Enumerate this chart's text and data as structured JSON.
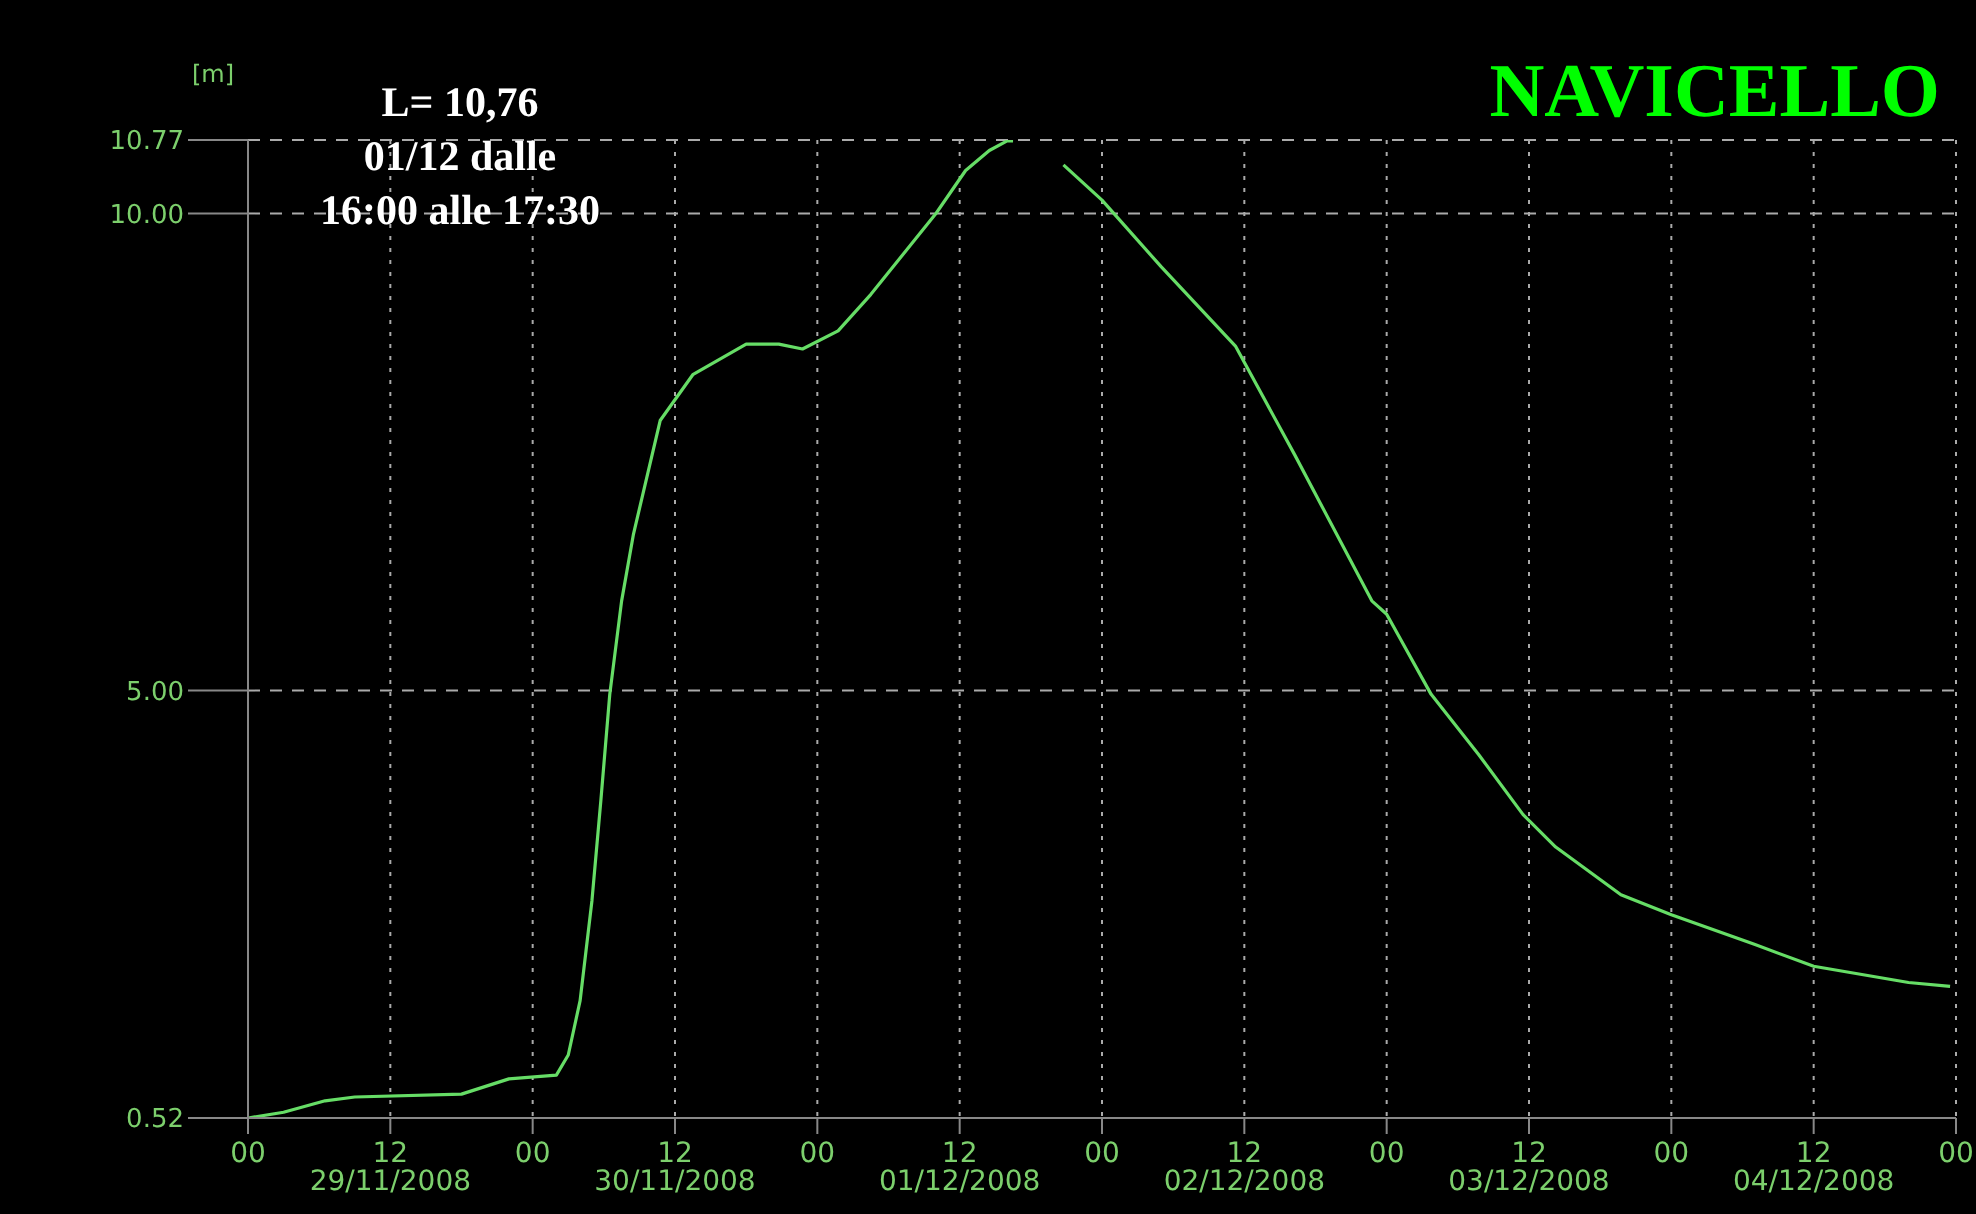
{
  "chart_data": {
    "type": "line",
    "title": "NAVICELLO",
    "ylabel": "[m]",
    "annotations": [
      "L= 10,76\n01/12 dalle\n16:00 alle 17:30"
    ],
    "x": [
      "2008-11-29T00:00",
      "2008-11-29T03:00",
      "2008-11-29T06:30",
      "2008-11-29T09:00",
      "2008-11-29T18:00",
      "2008-11-29T22:00",
      "2008-11-30T02:00",
      "2008-11-30T03:00",
      "2008-11-30T04:00",
      "2008-11-30T05:00",
      "2008-11-30T05:45",
      "2008-11-30T06:30",
      "2008-11-30T07:30",
      "2008-11-30T08:30",
      "2008-11-30T10:45",
      "2008-11-30T13:30",
      "2008-11-30T18:00",
      "2008-11-30T20:45",
      "2008-11-30T22:45",
      "2008-12-01T01:45",
      "2008-12-01T04:30",
      "2008-12-01T10:00",
      "2008-12-01T12:30",
      "2008-12-01T14:30",
      "2008-12-01T16:00",
      "2008-12-01T16:30",
      "2008-12-01T18:00",
      "2008-12-01T20:45",
      "2008-12-02T00:00",
      "2008-12-02T05:00",
      "2008-12-02T11:15",
      "2008-12-02T16:15",
      "2008-12-02T22:45",
      "2008-12-03T00:00",
      "2008-12-03T03:45",
      "2008-12-03T07:45",
      "2008-12-03T11:30",
      "2008-12-03T14:15",
      "2008-12-03T19:45",
      "2008-12-04T00:00",
      "2008-12-04T07:00",
      "2008-12-04T12:00",
      "2008-12-04T20:00",
      "2008-12-04T23:30"
    ],
    "series": [
      {
        "color": "#66dd66",
        "values": [
          0.52,
          0.58,
          0.7,
          0.74,
          0.77,
          0.93,
          0.97,
          1.18,
          1.75,
          2.8,
          3.85,
          4.96,
          5.94,
          6.64,
          7.83,
          8.31,
          8.63,
          8.63,
          8.58,
          8.77,
          9.15,
          10.0,
          10.45,
          10.66,
          10.76,
          10.76,
          null,
          10.51,
          10.14,
          9.44,
          8.61,
          7.47,
          5.94,
          5.8,
          4.96,
          4.33,
          3.7,
          3.36,
          2.86,
          2.65,
          2.34,
          2.11,
          1.94,
          1.9
        ]
      }
    ],
    "xlim": [
      "2008-11-29T00:00",
      "2008-12-05T00:00"
    ],
    "xticks": [
      {
        "value": "2008-11-29T00:00",
        "label": "00"
      },
      {
        "value": "2008-11-29T12:00",
        "label": "12\n29/11/2008"
      },
      {
        "value": "2008-11-30T00:00",
        "label": "00"
      },
      {
        "value": "2008-11-30T12:00",
        "label": "12\n30/11/2008"
      },
      {
        "value": "2008-12-01T00:00",
        "label": "00"
      },
      {
        "value": "2008-12-01T12:00",
        "label": "12\n01/12/2008"
      },
      {
        "value": "2008-12-02T00:00",
        "label": "00"
      },
      {
        "value": "2008-12-02T12:00",
        "label": "12\n02/12/2008"
      },
      {
        "value": "2008-12-03T00:00",
        "label": "00"
      },
      {
        "value": "2008-12-03T12:00",
        "label": "12\n03/12/2008"
      },
      {
        "value": "2008-12-04T00:00",
        "label": "00"
      },
      {
        "value": "2008-12-04T12:00",
        "label": "12\n04/12/2008"
      },
      {
        "value": "2008-12-05T00:00",
        "label": "00"
      }
    ],
    "ylim": [
      0.52,
      10.77
    ],
    "yticks": [
      {
        "value": 0.52,
        "label": "0.52"
      },
      {
        "value": 5,
        "label": "5.00"
      },
      {
        "value": 10,
        "label": "10.00"
      },
      {
        "value": 10.77,
        "label": "10.77"
      }
    ],
    "grid": true,
    "marker": "none",
    "line_style": "solid",
    "legend": false
  }
}
